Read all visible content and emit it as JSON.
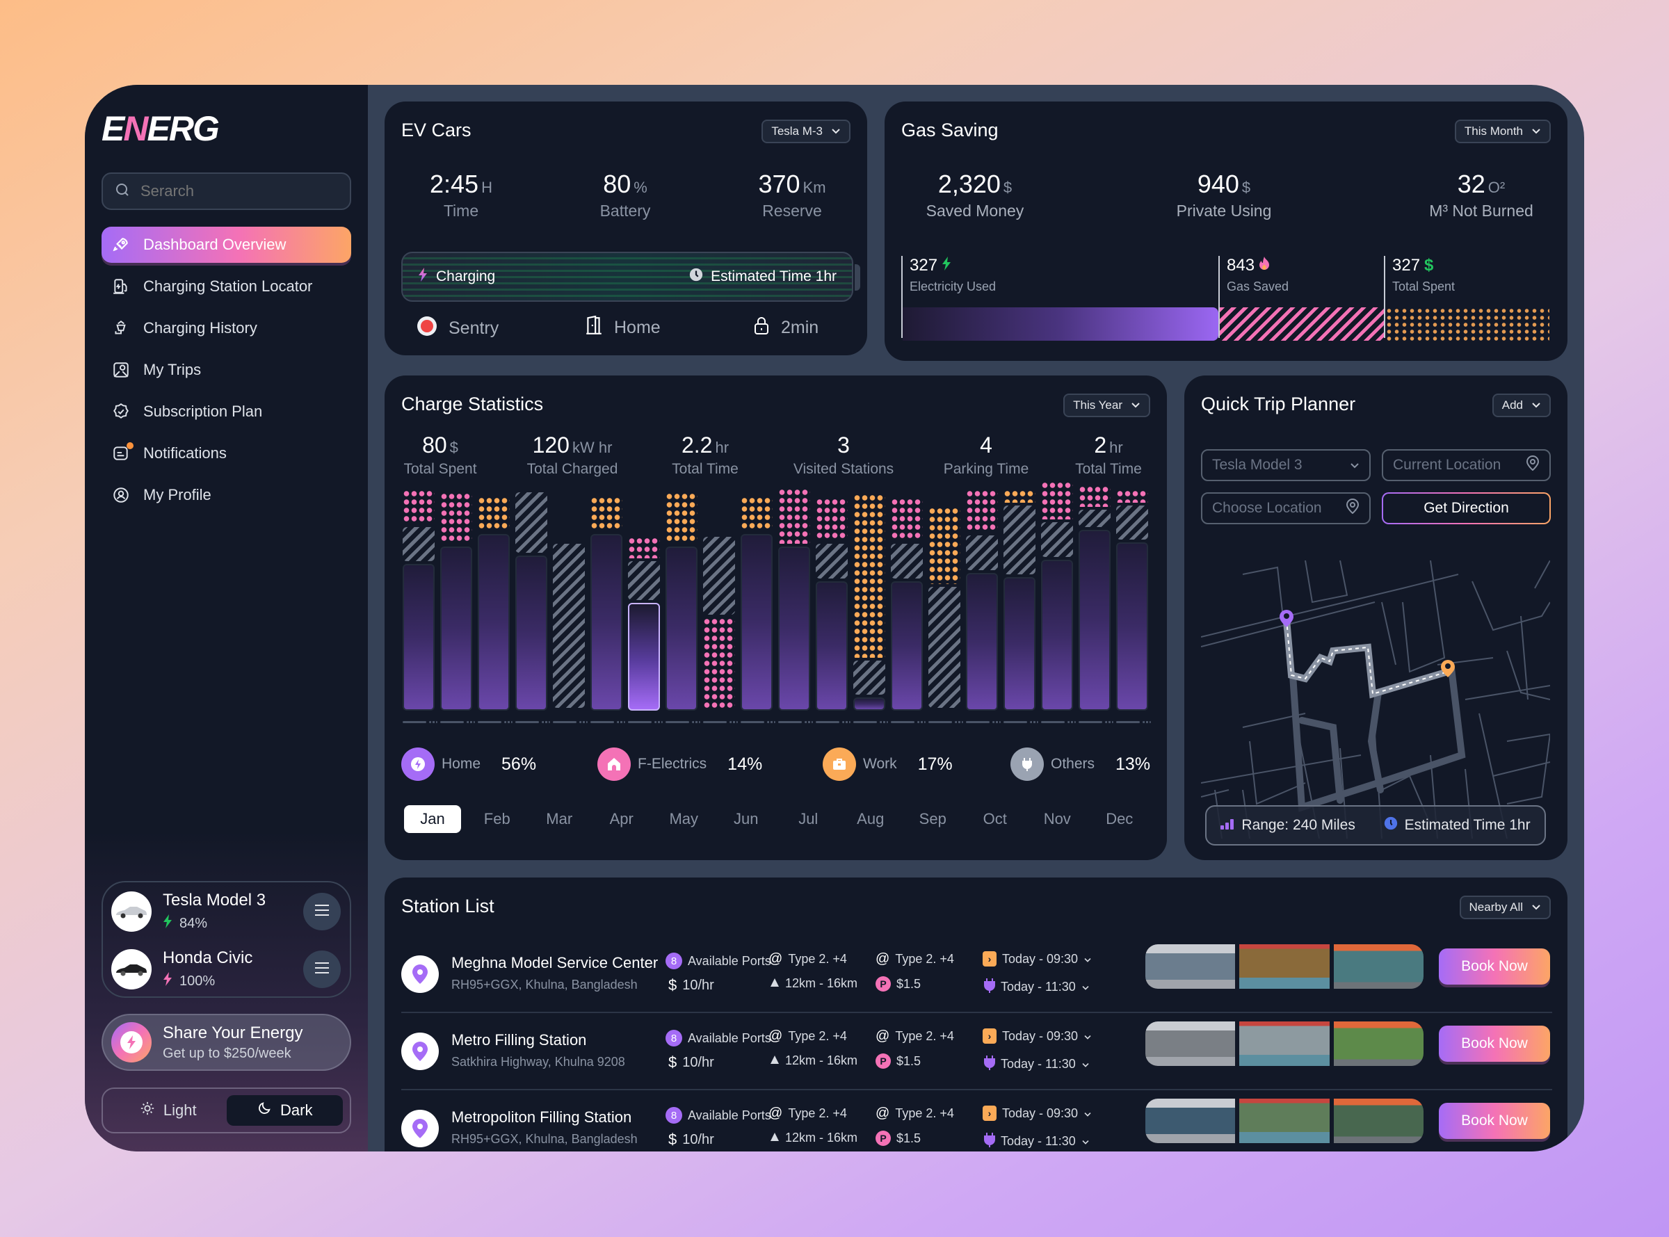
{
  "app": {
    "logo": "ENERG"
  },
  "sidebar": {
    "search_placeholder": "Serarch",
    "items": [
      {
        "label": "Dashboard Overview",
        "icon": "rocket-icon",
        "active": true
      },
      {
        "label": "Charging Station Locator",
        "icon": "fuel-station-icon"
      },
      {
        "label": "Charging History",
        "icon": "charging-history-icon"
      },
      {
        "label": "My Trips",
        "icon": "map-icon"
      },
      {
        "label": "Subscription Plan",
        "icon": "badge-check-icon"
      },
      {
        "label": "Notifications",
        "icon": "notification-icon",
        "has_badge": true
      },
      {
        "label": "My Profile",
        "icon": "user-circle-icon"
      }
    ],
    "cars": [
      {
        "name": "Tesla Model 3",
        "charge": "84%",
        "bolt_color": "#22c55e"
      },
      {
        "name": "Honda Civic",
        "charge": "100%",
        "bolt_color": "#f472b6"
      }
    ],
    "share": {
      "title": "Share Your Energy",
      "subtitle": "Get up to $250/week"
    },
    "theme": {
      "light": "Light",
      "dark": "Dark",
      "selected": "Dark"
    }
  },
  "ev_cars": {
    "title": "EV Cars",
    "dropdown": "Tesla M-3",
    "stats": [
      {
        "value": "2:45",
        "unit": "H",
        "label": "Time"
      },
      {
        "value": "80",
        "unit": "%",
        "label": "Battery"
      },
      {
        "value": "370",
        "unit": "Km",
        "label": "Reserve"
      }
    ],
    "charging": {
      "label": "Charging",
      "estimate": "Estimated Time 1hr"
    },
    "status": [
      {
        "label": "Sentry",
        "icon": "record-icon"
      },
      {
        "label": "Home",
        "icon": "door-icon"
      },
      {
        "label": "2min",
        "icon": "lock-icon"
      }
    ]
  },
  "gas_saving": {
    "title": "Gas Saving",
    "dropdown": "This Month",
    "stats": [
      {
        "value": "2,320",
        "unit": "$",
        "label": "Saved Money"
      },
      {
        "value": "940",
        "unit": "$",
        "label": "Private Using"
      },
      {
        "value": "32",
        "unit": "O²",
        "label": "M³ Not Burned"
      }
    ],
    "breakdown": [
      {
        "value": "327",
        "label": "Electricity Used",
        "icon": "bolt-icon"
      },
      {
        "value": "843",
        "label": "Gas Saved",
        "icon": "flame-icon"
      },
      {
        "value": "327",
        "label": "Total Spent",
        "icon": "dollar-icon"
      }
    ]
  },
  "charge_statistics": {
    "title": "Charge Statistics",
    "dropdown": "This Year",
    "stats": [
      {
        "value": "80",
        "unit": "$",
        "label": "Total Spent"
      },
      {
        "value": "120",
        "unit": "kW hr",
        "label": "Total Charged"
      },
      {
        "value": "2.2",
        "unit": "hr",
        "label": "Total Time"
      },
      {
        "value": "3",
        "unit": "",
        "label": "Visited Stations"
      },
      {
        "value": "4",
        "unit": "",
        "label": "Parking Time"
      },
      {
        "value": "2",
        "unit": "hr",
        "label": "Total Time"
      }
    ],
    "legend": [
      {
        "label": "Home",
        "pct": "56%",
        "color": "#a56cf6",
        "icon": "bolt-icon"
      },
      {
        "label": "F-Electrics",
        "pct": "14%",
        "color": "#f472b6",
        "icon": "house-icon"
      },
      {
        "label": "Work",
        "pct": "17%",
        "color": "#fbaa57",
        "icon": "briefcase-icon"
      },
      {
        "label": "Others",
        "pct": "13%",
        "color": "#9aa3b2",
        "icon": "plug-icon"
      }
    ],
    "months": [
      "Jan",
      "Feb",
      "Mar",
      "Apr",
      "May",
      "Jun",
      "Jul",
      "Aug",
      "Sep",
      "Oct",
      "Nov",
      "Dec"
    ],
    "selected_month": "Jan"
  },
  "chart_data": {
    "type": "bar",
    "title": "Charge Statistics",
    "stacked": true,
    "categories": [
      "1",
      "2",
      "3",
      "4",
      "5",
      "6",
      "7",
      "8",
      "9",
      "10",
      "11",
      "12",
      "13",
      "14",
      "15",
      "16",
      "17",
      "18",
      "19",
      "20"
    ],
    "series": [
      {
        "name": "Home (solid)",
        "values": [
          68,
          76,
          82,
          72,
          0,
          82,
          50,
          76,
          0,
          82,
          76,
          60,
          6,
          60,
          0,
          64,
          62,
          70,
          84,
          78
        ]
      },
      {
        "name": "Others (hatch)",
        "values": [
          16,
          0,
          0,
          28,
          76,
          0,
          18,
          0,
          36,
          0,
          0,
          16,
          16,
          16,
          56,
          16,
          32,
          16,
          8,
          16
        ]
      },
      {
        "name": "F-Electrics (pink dots)",
        "values": [
          16,
          24,
          0,
          0,
          0,
          0,
          10,
          0,
          42,
          0,
          26,
          20,
          0,
          20,
          0,
          20,
          0,
          18,
          10,
          6
        ]
      },
      {
        "name": "Work (orange dots)",
        "values": [
          0,
          0,
          16,
          0,
          0,
          16,
          0,
          24,
          0,
          16,
          0,
          0,
          76,
          0,
          36,
          0,
          6,
          0,
          0,
          0
        ]
      }
    ],
    "highlighted_index": 6,
    "ylim": [
      0,
      100
    ],
    "grid": false,
    "legend_position": "bottom"
  },
  "trip_planner": {
    "title": "Quick Trip Planner",
    "dropdown": "Add",
    "car_select": "Tesla Model 3",
    "current_location_placeholder": "Current Location",
    "choose_location_placeholder": "Choose Location",
    "get_direction": "Get Direction",
    "range": "Range: 240 Miles",
    "estimate": "Estimated Time 1hr"
  },
  "station_list": {
    "title": "Station List",
    "dropdown": "Nearby All",
    "book_label": "Book Now",
    "stations": [
      {
        "name": "Meghna Model Service Center",
        "address": "RH95+GGX, Khulna, Bangladesh",
        "ports": "8",
        "ports_label": "Available Ports",
        "price": "10/hr",
        "type1": "Type 2. +4",
        "distance": "12km - 16km",
        "type2": "Type 2. +4",
        "parking": "$1.5",
        "open": "Today - 09:30",
        "close": "Today - 11:30",
        "photos": [
          "#6b7d8e",
          "#8a6a3a",
          "#4a7a80"
        ]
      },
      {
        "name": "Metro Filling Station",
        "address": "Satkhira Highway, Khulna 9208",
        "ports": "8",
        "ports_label": "Available Ports",
        "price": "10/hr",
        "type1": "Type 2. +4",
        "distance": "12km - 16km",
        "type2": "Type 2. +4",
        "parking": "$1.5",
        "open": "Today - 09:30",
        "close": "Today - 11:30",
        "photos": [
          "#7a7f85",
          "#8d9aa0",
          "#5d8a4a"
        ]
      },
      {
        "name": "Metropoliton Filling Station",
        "address": "RH95+GGX, Khulna, Bangladesh",
        "ports": "8",
        "ports_label": "Available Ports",
        "price": "10/hr",
        "type1": "Type 2. +4",
        "distance": "12km - 16km",
        "type2": "Type 2. +4",
        "parking": "$1.5",
        "open": "Today - 09:30",
        "close": "Today - 11:30",
        "photos": [
          "#3d5a70",
          "#5f7d5a",
          "#48674f"
        ]
      }
    ]
  },
  "colors": {
    "accent_purple": "#a56cf6",
    "accent_pink": "#f472b6",
    "accent_orange": "#fca566",
    "card_bg": "#121827",
    "frame_bg": "#354156",
    "green": "#22c55e"
  }
}
